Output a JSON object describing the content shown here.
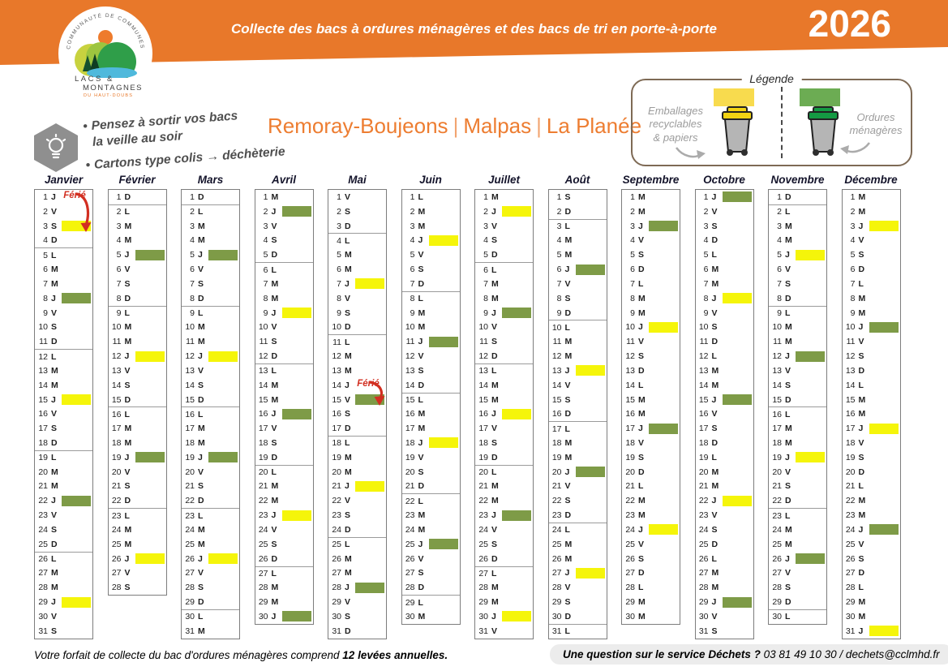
{
  "banner": {
    "title": "Collecte des bacs à ordures ménagères et des bacs de tri en porte-à-porte",
    "year": "2026"
  },
  "logo": {
    "arc_text": "COMMUNAUTÉ DE COMMUNES",
    "line1": "LACS &",
    "line2": "MONTAGNES",
    "line3": "DU HAUT-DOUBS"
  },
  "tips": {
    "bullet": "•",
    "items": [
      [
        "Pensez à sortir vos bacs",
        "la veille au soir"
      ],
      [
        "Cartons type colis → déchèterie"
      ]
    ]
  },
  "communes": {
    "names": [
      "Remoray-Boujeons",
      "Malpas",
      "La Planée"
    ],
    "separator": "|"
  },
  "legend": {
    "title": "Légende",
    "recyclables_lines": [
      "Emballages",
      "recyclables",
      "& papiers"
    ],
    "waste_lines": [
      "Ordures",
      "ménagères"
    ]
  },
  "colors": {
    "banner_orange": "#E8782A",
    "title_orange": "#ED7D31",
    "calendar_yellow": "#F5F50A",
    "calendar_green": "#7E9B47",
    "legend_yellow": "#F8DB4E",
    "legend_green": "#6CAC53",
    "bin_lid_yellow": "#F2D313",
    "bin_lid_green": "#149A43",
    "ferie_red": "#D22F21"
  },
  "weekday_letters": [
    "L",
    "M",
    "M",
    "J",
    "V",
    "S",
    "D"
  ],
  "ferie_label": "Férié",
  "months": [
    {
      "name": "Janvier",
      "days": 31,
      "first_dow": 3,
      "yellow": [
        3,
        15,
        29
      ],
      "green": [
        8,
        22
      ],
      "week_lines": true,
      "ferie": {
        "label_day": 1,
        "arrow_to_day": 3
      }
    },
    {
      "name": "Février",
      "days": 28,
      "first_dow": 6,
      "yellow": [
        12,
        26
      ],
      "green": [
        5,
        19
      ],
      "week_lines": true
    },
    {
      "name": "Mars",
      "days": 31,
      "first_dow": 6,
      "yellow": [
        12,
        26
      ],
      "green": [
        5,
        19
      ],
      "week_lines": true
    },
    {
      "name": "Avril",
      "days": 30,
      "first_dow": 2,
      "yellow": [
        9,
        23
      ],
      "green": [
        2,
        16,
        30
      ],
      "week_lines": true
    },
    {
      "name": "Mai",
      "days": 31,
      "first_dow": 4,
      "yellow": [
        7,
        21
      ],
      "green": [
        15,
        28
      ],
      "week_lines": true,
      "ferie": {
        "label_day": 14,
        "arrow_to_day": 15
      }
    },
    {
      "name": "Juin",
      "days": 30,
      "first_dow": 0,
      "yellow": [
        4,
        18
      ],
      "green": [
        11,
        25
      ],
      "week_lines": true
    },
    {
      "name": "Juillet",
      "days": 31,
      "first_dow": 2,
      "yellow": [
        2,
        16,
        30
      ],
      "green": [
        9,
        23
      ],
      "week_lines": true
    },
    {
      "name": "Août",
      "days": 31,
      "first_dow": 5,
      "yellow": [
        13,
        27
      ],
      "green": [
        6,
        20
      ],
      "week_lines": true
    },
    {
      "name": "Septembre",
      "days": 30,
      "first_dow": 1,
      "yellow": [
        10,
        24
      ],
      "green": [
        3,
        17
      ],
      "week_lines": false
    },
    {
      "name": "Octobre",
      "days": 31,
      "first_dow": 3,
      "yellow": [
        8,
        22
      ],
      "green": [
        1,
        15,
        29
      ],
      "week_lines": false
    },
    {
      "name": "Novembre",
      "days": 30,
      "first_dow": 6,
      "yellow": [
        5,
        19
      ],
      "green": [
        12,
        26
      ],
      "week_lines": true
    },
    {
      "name": "Décembre",
      "days": 31,
      "first_dow": 1,
      "yellow": [
        3,
        17,
        31
      ],
      "green": [
        10,
        24
      ],
      "week_lines": false
    }
  ],
  "footer": {
    "left_regular": "Votre forfait de collecte du bac d'ordures ménagères comprend ",
    "left_bold": "12 levées annuelles.",
    "right_bold": "Une question sur le service Déchets ? ",
    "right_regular": "03 81 49 10 30 / dechets@cclmhd.fr"
  }
}
